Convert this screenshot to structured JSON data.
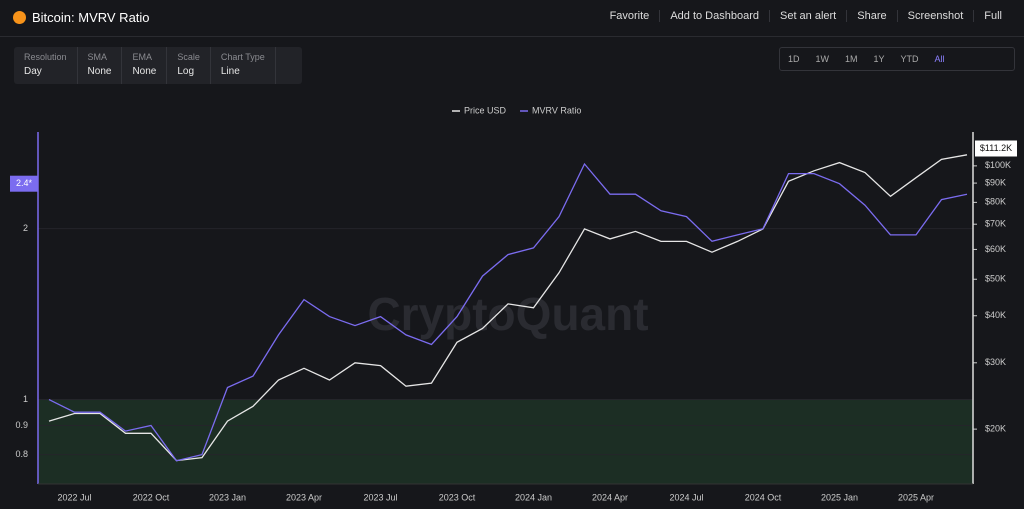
{
  "header": {
    "title": "Bitcoin: MVRV Ratio",
    "actions": [
      "Favorite",
      "Add to Dashboard",
      "Set an alert",
      "Share",
      "Screenshot",
      "Full"
    ]
  },
  "controls": [
    {
      "label": "Resolution",
      "value": "Day"
    },
    {
      "label": "SMA",
      "value": "None"
    },
    {
      "label": "EMA",
      "value": "None"
    },
    {
      "label": "Scale",
      "value": "Log"
    },
    {
      "label": "Chart Type",
      "value": "Line"
    }
  ],
  "ranges": [
    "1D",
    "1W",
    "1M",
    "1Y",
    "YTD",
    "All"
  ],
  "active_range": "All",
  "watermark": "CryptoQuant",
  "chart_data": {
    "type": "line",
    "x": [
      "2022 Jun",
      "2022 Jul",
      "2022 Aug",
      "2022 Sep",
      "2022 Oct",
      "2022 Nov",
      "2022 Dec",
      "2023 Jan",
      "2023 Feb",
      "2023 Mar",
      "2023 Apr",
      "2023 May",
      "2023 Jun",
      "2023 Jul",
      "2023 Aug",
      "2023 Sep",
      "2023 Oct",
      "2023 Nov",
      "2023 Dec",
      "2024 Jan",
      "2024 Feb",
      "2024 Mar",
      "2024 Apr",
      "2024 May",
      "2024 Jun",
      "2024 Jul",
      "2024 Aug",
      "2024 Sep",
      "2024 Oct",
      "2024 Nov",
      "2024 Dec",
      "2025 Jan",
      "2025 Feb",
      "2025 Mar",
      "2025 Apr",
      "2025 May",
      "2025 Jun"
    ],
    "xticks": [
      "2022 Jul",
      "2022 Oct",
      "2023 Jan",
      "2023 Apr",
      "2023 Jul",
      "2023 Oct",
      "2024 Jan",
      "2024 Apr",
      "2024 Jul",
      "2024 Oct",
      "2025 Jan",
      "2025 Apr"
    ],
    "log": true,
    "series": [
      {
        "name": "Price USD",
        "color": "#e6e6e6",
        "axis": "y2",
        "values": [
          21000,
          22000,
          22000,
          19500,
          19500,
          16500,
          16800,
          21000,
          23000,
          27000,
          29000,
          27000,
          30000,
          29500,
          26000,
          26500,
          34000,
          37000,
          43000,
          42000,
          52000,
          68000,
          64000,
          67000,
          63000,
          63000,
          59000,
          63000,
          68000,
          91000,
          97000,
          102000,
          96000,
          83000,
          93000,
          104000,
          107000
        ]
      },
      {
        "name": "MVRV Ratio",
        "color": "#7b6cf0",
        "values": [
          1.0,
          0.95,
          0.95,
          0.88,
          0.9,
          0.78,
          0.8,
          1.05,
          1.1,
          1.3,
          1.5,
          1.4,
          1.35,
          1.4,
          1.3,
          1.25,
          1.4,
          1.65,
          1.8,
          1.85,
          2.1,
          2.6,
          2.3,
          2.3,
          2.15,
          2.1,
          1.9,
          1.95,
          2.0,
          2.5,
          2.5,
          2.4,
          2.2,
          1.95,
          1.95,
          2.25,
          2.3
        ]
      }
    ],
    "ylim": [
      0.71,
      2.96
    ],
    "yticks": [
      0.8,
      0.9,
      1,
      2
    ],
    "y2lim": [
      14300,
      123000
    ],
    "y2ticks": [
      {
        "value": 20000,
        "label": "$20K"
      },
      {
        "value": 30000,
        "label": "$30K"
      },
      {
        "value": 40000,
        "label": "$40K"
      },
      {
        "value": 50000,
        "label": "$50K"
      },
      {
        "value": 60000,
        "label": "$60K"
      },
      {
        "value": 70000,
        "label": "$70K"
      },
      {
        "value": 80000,
        "label": "$80K"
      },
      {
        "value": 90000,
        "label": "$90K"
      },
      {
        "value": 100000,
        "label": "$100K"
      }
    ],
    "y_marker": {
      "value": 2.4,
      "label": "2.4*"
    },
    "y2_marker": {
      "value": 111200,
      "label": "$111.2K"
    },
    "threshold": 1
  }
}
